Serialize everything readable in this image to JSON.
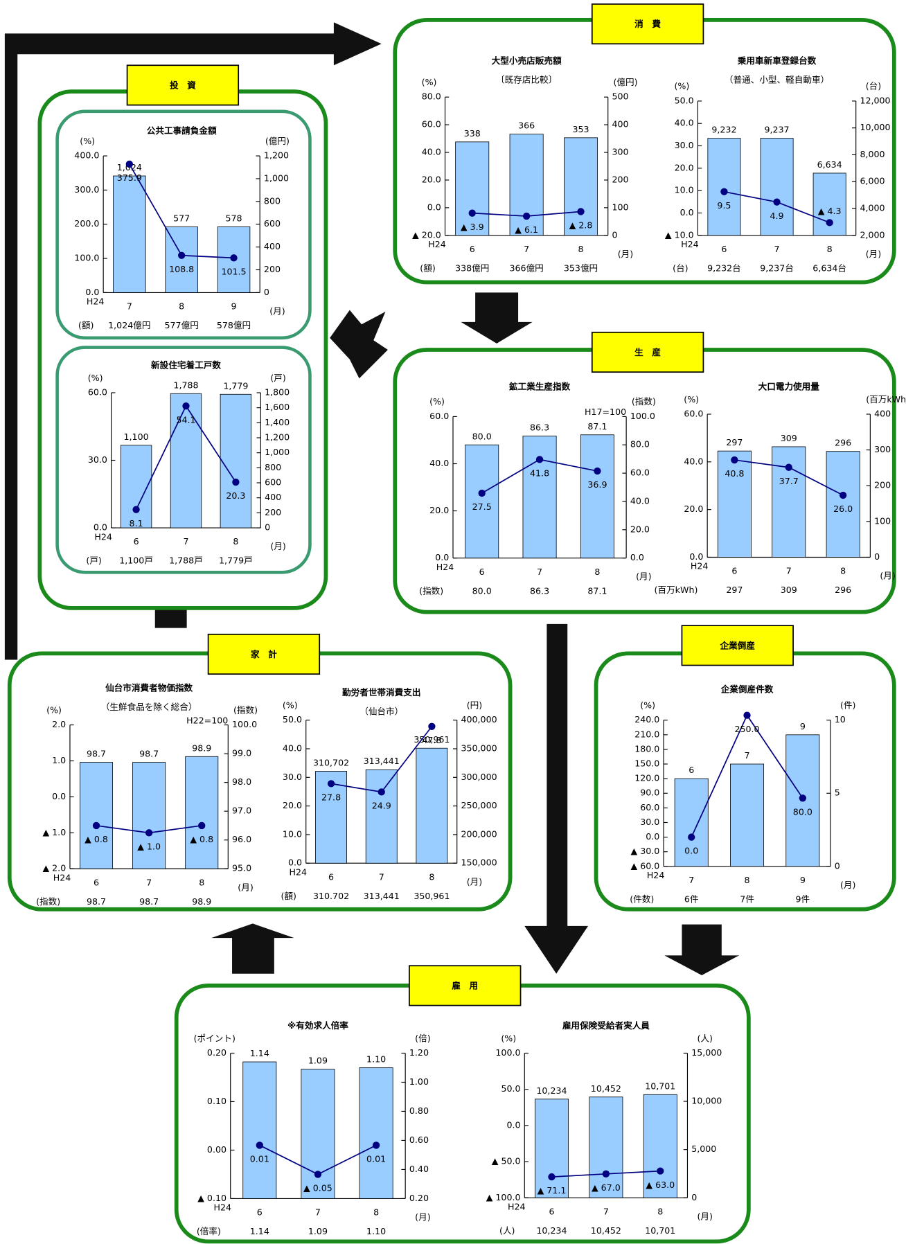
{
  "sections": [
    {
      "label": "消　費"
    },
    {
      "label": "投　資"
    },
    {
      "label": "生　産"
    },
    {
      "label": "企業倒産"
    },
    {
      "label": "家　計"
    },
    {
      "label": "雇　用"
    }
  ],
  "chart_data": [
    {
      "type": "bar",
      "title": "大型小売店販売額",
      "subtitle": "〔既存店比較〕",
      "y_unit": "(%)",
      "y2_unit": "(億円)",
      "category_prefix": "H24",
      "categories": [
        "6",
        "7",
        "8"
      ],
      "x_unit": "(月)",
      "ylim": [
        -20,
        80
      ],
      "yticks": [
        {
          "value": -20,
          "label": "▲ 20.0"
        },
        {
          "value": 0,
          "label": "0.0"
        },
        {
          "value": 20,
          "label": "20.0"
        },
        {
          "value": 40,
          "label": "40.0"
        },
        {
          "value": 60,
          "label": "60.0"
        },
        {
          "value": 80,
          "label": "80.0"
        }
      ],
      "y2lim": [
        0,
        500
      ],
      "y2ticks": [
        0,
        100,
        200,
        300,
        400,
        500
      ],
      "series": [
        {
          "axis": "y2",
          "color": "#99ccff",
          "values": [
            338,
            366,
            353
          ]
        },
        {
          "type": "line",
          "color": "#000080",
          "values": [
            -3.9,
            -6.1,
            -2.8
          ],
          "value_labels": [
            "▲ 3.9",
            "▲ 6.1",
            "▲ 2.8"
          ]
        }
      ],
      "table": {
        "label": "(額)",
        "values": [
          "338億円",
          "366億円",
          "353億円"
        ]
      }
    },
    {
      "type": "bar",
      "title": "乗用車新車登録台数",
      "subtitle": "（普通、小型、軽自動車）",
      "y_unit": "(%)",
      "y2_unit": "(台)",
      "category_prefix": "H24",
      "categories": [
        "6",
        "7",
        "8"
      ],
      "x_unit": "(月)",
      "ylim": [
        -10,
        50
      ],
      "yticks": [
        {
          "value": -10,
          "label": "▲ 10.0"
        },
        {
          "value": 0,
          "label": "0.0"
        },
        {
          "value": 10,
          "label": "10.0"
        },
        {
          "value": 20,
          "label": "20.0"
        },
        {
          "value": 30,
          "label": "30.0"
        },
        {
          "value": 40,
          "label": "40.0"
        },
        {
          "value": 50,
          "label": "50.0"
        }
      ],
      "y2lim": [
        2000,
        12000
      ],
      "y2ticks": [
        {
          "value": 2000,
          "label": "2,000"
        },
        {
          "value": 4000,
          "label": "4,000"
        },
        {
          "value": 6000,
          "label": "6,000"
        },
        {
          "value": 8000,
          "label": "8,000"
        },
        {
          "value": 10000,
          "label": "10,000"
        },
        {
          "value": 12000,
          "label": "12,000"
        }
      ],
      "series": [
        {
          "axis": "y2",
          "color": "#99ccff",
          "values": [
            9232,
            9237,
            6634
          ],
          "value_labels": [
            "9,232",
            "9,237",
            "6,634"
          ]
        },
        {
          "type": "line",
          "color": "#000080",
          "values": [
            9.5,
            4.9,
            -4.3
          ],
          "value_labels": [
            "9.5",
            "4.9",
            "▲ 4.3"
          ]
        }
      ],
      "table": {
        "label": "(台)",
        "values": [
          "9,232台",
          "9,237台",
          "6,634台"
        ]
      }
    },
    {
      "type": "bar",
      "title": "公共工事請負金額",
      "y_unit": "(%)",
      "y2_unit": "(億円)",
      "category_prefix": "H24",
      "categories": [
        "7",
        "8",
        "9"
      ],
      "x_unit": "(月)",
      "ylim": [
        0,
        400
      ],
      "yticks": [
        {
          "value": 0,
          "label": "0.0"
        },
        {
          "value": 100,
          "label": "100.0"
        },
        {
          "value": 200,
          "label": "200.0"
        },
        {
          "value": 300,
          "label": "300.0"
        },
        {
          "value": 400,
          "label": "400.0"
        }
      ],
      "y2lim": [
        0,
        1200
      ],
      "y2ticks": [
        0,
        200,
        400,
        600,
        800,
        {
          "value": 1000,
          "label": "1,000"
        },
        {
          "value": 1200,
          "label": "1,200"
        }
      ],
      "series": [
        {
          "axis": "y2",
          "color": "#99ccff",
          "values": [
            1024,
            577,
            578
          ],
          "value_labels": [
            "1,024",
            "577",
            "578"
          ]
        },
        {
          "type": "line",
          "color": "#000080",
          "values": [
            375.9,
            108.8,
            101.5
          ]
        }
      ],
      "table": {
        "label": "(額)",
        "values": [
          "1,024億円",
          "577億円",
          "578億円"
        ]
      }
    },
    {
      "type": "bar",
      "title": "新設住宅着工戸数",
      "y_unit": "(%)",
      "y2_unit": "(戸)",
      "category_prefix": "H24",
      "categories": [
        "6",
        "7",
        "8"
      ],
      "x_unit": "(月)",
      "ylim": [
        0,
        60
      ],
      "yticks": [
        {
          "value": 0,
          "label": "0.0"
        },
        {
          "value": 30,
          "label": "30.0"
        },
        {
          "value": 60,
          "label": "60.0"
        }
      ],
      "y2lim": [
        0,
        1800
      ],
      "y2ticks": [
        0,
        200,
        400,
        600,
        800,
        {
          "value": 1000,
          "label": "1,000"
        },
        {
          "value": 1200,
          "label": "1,200"
        },
        {
          "value": 1400,
          "label": "1,400"
        },
        {
          "value": 1600,
          "label": "1,600"
        },
        {
          "value": 1800,
          "label": "1,800"
        }
      ],
      "series": [
        {
          "axis": "y2",
          "color": "#99ccff",
          "values": [
            1100,
            1788,
            1779
          ],
          "value_labels": [
            "1,100",
            "1,788",
            "1,779"
          ]
        },
        {
          "type": "line",
          "color": "#000080",
          "values": [
            8.1,
            54.1,
            20.3
          ]
        }
      ],
      "table": {
        "label": "(戸)",
        "values": [
          "1,100戸",
          "1,788戸",
          "1,779戸"
        ]
      }
    },
    {
      "type": "bar",
      "title": "鉱工業生産指数",
      "y_unit": "(%)",
      "y2_unit": "(指数)",
      "note": "H17=100",
      "category_prefix": "H24",
      "categories": [
        "6",
        "7",
        "8"
      ],
      "x_unit": "(月)",
      "ylim": [
        0,
        60
      ],
      "yticks": [
        {
          "value": 0,
          "label": "0.0"
        },
        {
          "value": 20,
          "label": "20.0"
        },
        {
          "value": 40,
          "label": "40.0"
        },
        {
          "value": 60,
          "label": "60.0"
        }
      ],
      "y2lim": [
        0,
        100
      ],
      "y2ticks": [
        {
          "value": 0,
          "label": "0.0"
        },
        {
          "value": 20,
          "label": "20.0"
        },
        {
          "value": 40,
          "label": "40.0"
        },
        {
          "value": 60,
          "label": "60.0"
        },
        {
          "value": 80,
          "label": "80.0"
        },
        {
          "value": 100,
          "label": "100.0"
        }
      ],
      "series": [
        {
          "axis": "y2",
          "color": "#99ccff",
          "values": [
            80,
            86.3,
            87.1
          ],
          "value_labels": [
            "80.0",
            "86.3",
            "87.1"
          ]
        },
        {
          "type": "line",
          "color": "#000080",
          "values": [
            27.5,
            41.8,
            36.9
          ]
        }
      ],
      "table": {
        "label": "(指数)",
        "values": [
          "80.0",
          "86.3",
          "87.1"
        ]
      }
    },
    {
      "type": "bar",
      "title": "大口電力使用量",
      "y_unit": "(%)",
      "y2_unit": "(百万kWh)",
      "category_prefix": "H24",
      "categories": [
        "6",
        "7",
        "8"
      ],
      "x_unit": "(月)",
      "ylim": [
        0,
        60
      ],
      "yticks": [
        {
          "value": 0,
          "label": "0.0"
        },
        {
          "value": 20,
          "label": "20.0"
        },
        {
          "value": 40,
          "label": "40.0"
        },
        {
          "value": 60,
          "label": "60.0"
        }
      ],
      "y2lim": [
        0,
        400
      ],
      "y2ticks": [
        0,
        100,
        200,
        300,
        400
      ],
      "series": [
        {
          "axis": "y2",
          "color": "#99ccff",
          "values": [
            297,
            309,
            296
          ]
        },
        {
          "type": "line",
          "color": "#000080",
          "values": [
            40.8,
            37.7,
            26
          ],
          "value_labels": [
            "40.8",
            "37.7",
            "26.0"
          ]
        }
      ],
      "table": {
        "label": "(百万kWh)",
        "values": [
          "297",
          "309",
          "296"
        ]
      }
    },
    {
      "type": "bar",
      "title": "仙台市消費者物価指数",
      "subtitle": "（生鮮食品を除く総合）",
      "y_unit": "(%)",
      "y2_unit": "(指数)",
      "note": "H22=100",
      "category_prefix": "H24",
      "categories": [
        "6",
        "7",
        "8"
      ],
      "x_unit": "(月)",
      "ylim": [
        -2,
        2
      ],
      "yticks": [
        {
          "value": -2,
          "label": "▲ 2.0"
        },
        {
          "value": -1,
          "label": "▲ 1.0"
        },
        {
          "value": 0,
          "label": "0.0"
        },
        {
          "value": 1,
          "label": "1.0"
        },
        {
          "value": 2,
          "label": "2.0"
        }
      ],
      "y2lim": [
        95,
        100
      ],
      "y2ticks": [
        {
          "value": 95,
          "label": "95.0"
        },
        {
          "value": 96,
          "label": "96.0"
        },
        {
          "value": 97,
          "label": "97.0"
        },
        {
          "value": 98,
          "label": "98.0"
        },
        {
          "value": 99,
          "label": "99.0"
        },
        {
          "value": 100,
          "label": "100.0"
        }
      ],
      "series": [
        {
          "axis": "y2",
          "color": "#99ccff",
          "values": [
            98.7,
            98.7,
            98.9
          ]
        },
        {
          "type": "line",
          "color": "#000080",
          "values": [
            -0.8,
            -1,
            -0.8
          ],
          "value_labels": [
            "▲ 0.8",
            "▲ 1.0",
            "▲ 0.8"
          ]
        }
      ],
      "table": {
        "label": "(指数)",
        "values": [
          "98.7",
          "98.7",
          "98.9"
        ]
      }
    },
    {
      "type": "bar",
      "title": "勤労者世帯消費支出",
      "subtitle": "（仙台市）",
      "y_unit": "(%)",
      "y2_unit": "(円)",
      "category_prefix": "H24",
      "categories": [
        "6",
        "7",
        "8"
      ],
      "x_unit": "(月)",
      "ylim": [
        0,
        50
      ],
      "yticks": [
        {
          "value": 0,
          "label": "0.0"
        },
        {
          "value": 10,
          "label": "10.0"
        },
        {
          "value": 20,
          "label": "20.0"
        },
        {
          "value": 30,
          "label": "30.0"
        },
        {
          "value": 40,
          "label": "40.0"
        },
        {
          "value": 50,
          "label": "50.0"
        }
      ],
      "y2lim": [
        150000,
        400000
      ],
      "y2ticks": [
        {
          "value": 150000,
          "label": "150,000"
        },
        {
          "value": 200000,
          "label": "200,000"
        },
        {
          "value": 250000,
          "label": "250,000"
        },
        {
          "value": 300000,
          "label": "300,000"
        },
        {
          "value": 350000,
          "label": "350,000"
        },
        {
          "value": 400000,
          "label": "400,000"
        }
      ],
      "series": [
        {
          "axis": "y2",
          "color": "#99ccff",
          "values": [
            310702,
            313441,
            350961
          ],
          "value_labels": [
            "310,702",
            "313,441",
            "350,961"
          ]
        },
        {
          "type": "line",
          "color": "#000080",
          "values": [
            27.8,
            24.9,
            47.8
          ]
        }
      ],
      "table": {
        "label": "(額)",
        "values": [
          "310.702",
          "313,441",
          "350,961"
        ]
      }
    },
    {
      "type": "bar",
      "title": "企業倒産件数",
      "y_unit": "(%)",
      "y2_unit": "(件)",
      "category_prefix": "H24",
      "categories": [
        "7",
        "8",
        "9"
      ],
      "x_unit": "(月)",
      "ylim": [
        -60,
        240
      ],
      "yticks": [
        {
          "value": -60,
          "label": "▲ 60.0"
        },
        {
          "value": -30,
          "label": "▲ 30.0"
        },
        {
          "value": 0,
          "label": "0.0"
        },
        {
          "value": 30,
          "label": "30.0"
        },
        {
          "value": 60,
          "label": "60.0"
        },
        {
          "value": 90,
          "label": "90.0"
        },
        {
          "value": 120,
          "label": "120.0"
        },
        {
          "value": 150,
          "label": "150.0"
        },
        {
          "value": 180,
          "label": "180.0"
        },
        {
          "value": 210,
          "label": "210.0"
        },
        {
          "value": 240,
          "label": "240.0"
        }
      ],
      "y2lim": [
        0,
        10
      ],
      "y2ticks": [
        0,
        5,
        10
      ],
      "series": [
        {
          "axis": "y2",
          "color": "#99ccff",
          "values": [
            6,
            7,
            9
          ]
        },
        {
          "type": "line",
          "color": "#000080",
          "values": [
            0,
            250,
            80
          ],
          "value_labels": [
            "0.0",
            "250.0",
            "80.0"
          ]
        }
      ],
      "table": {
        "label": "(件数)",
        "values": [
          "6件",
          "7件",
          "9件"
        ]
      }
    },
    {
      "type": "bar",
      "title": "※有効求人倍率",
      "y_unit": "(ポイント)",
      "y2_unit": "(倍)",
      "category_prefix": "H24",
      "categories": [
        "6",
        "7",
        "8"
      ],
      "x_unit": "(月)",
      "ylim": [
        -0.1,
        0.2
      ],
      "yticks": [
        {
          "value": -0.1,
          "label": "▲ 0.10"
        },
        {
          "value": 0,
          "label": "0.00"
        },
        {
          "value": 0.1,
          "label": "0.10"
        },
        {
          "value": 0.2,
          "label": "0.20"
        }
      ],
      "y2lim": [
        0.2,
        1.2
      ],
      "y2ticks": [
        {
          "value": 0.2,
          "label": "0.20"
        },
        {
          "value": 0.4,
          "label": "0.40"
        },
        {
          "value": 0.6,
          "label": "0.60"
        },
        {
          "value": 0.8,
          "label": "0.80"
        },
        {
          "value": 1,
          "label": "1.00"
        },
        {
          "value": 1.2,
          "label": "1.20"
        }
      ],
      "series": [
        {
          "axis": "y2",
          "color": "#99ccff",
          "values": [
            1.14,
            1.09,
            1.1
          ],
          "value_labels": [
            "1.14",
            "1.09",
            "1.10"
          ]
        },
        {
          "type": "line",
          "color": "#000080",
          "values": [
            0.01,
            -0.05,
            0.01
          ],
          "value_labels": [
            "0.01",
            "▲ 0.05",
            "0.01"
          ]
        }
      ],
      "table": {
        "label": "(倍率)",
        "values": [
          "1.14",
          "1.09",
          "1.10"
        ]
      }
    },
    {
      "type": "bar",
      "title": "雇用保険受給者実人員",
      "y_unit": "(%)",
      "y2_unit": "(人)",
      "category_prefix": "H24",
      "categories": [
        "6",
        "7",
        "8"
      ],
      "x_unit": "(月)",
      "ylim": [
        -100,
        100
      ],
      "yticks": [
        {
          "value": -100,
          "label": "▲ 100.0"
        },
        {
          "value": -50,
          "label": "▲ 50.0"
        },
        {
          "value": 0,
          "label": "0.0"
        },
        {
          "value": 50,
          "label": "50.0"
        },
        {
          "value": 100,
          "label": "100.0"
        }
      ],
      "y2lim": [
        0,
        15000
      ],
      "y2ticks": [
        0,
        {
          "value": 5000,
          "label": "5,000"
        },
        {
          "value": 10000,
          "label": "10,000"
        },
        {
          "value": 15000,
          "label": "15,000"
        }
      ],
      "series": [
        {
          "axis": "y2",
          "color": "#99ccff",
          "values": [
            10234,
            10452,
            10701
          ],
          "value_labels": [
            "10,234",
            "10,452",
            "10,701"
          ]
        },
        {
          "type": "line",
          "color": "#000080",
          "values": [
            -71.1,
            -67,
            -63
          ],
          "value_labels": [
            "▲ 71.1",
            "▲ 67.0",
            "▲ 63.0"
          ]
        }
      ],
      "table": {
        "label": "(人)",
        "values": [
          "10,234",
          "10,452",
          "10,701"
        ]
      }
    }
  ]
}
